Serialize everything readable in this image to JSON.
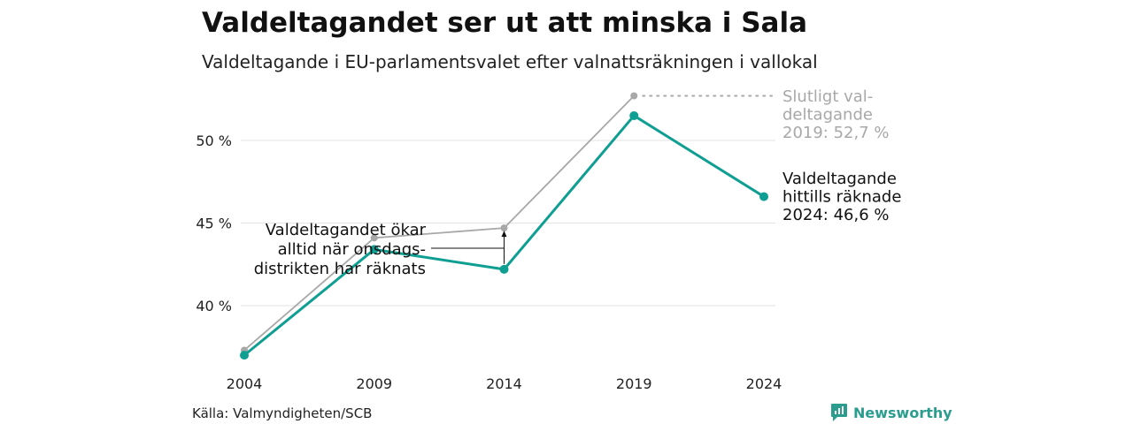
{
  "header": {
    "title": "Valdeltagandet ser ut att minska i Sala",
    "subtitle": "Valdeltagande i EU-parlamentsvalet efter valnattsräkningen i vallokal"
  },
  "footer": {
    "source": "Källa: Valmyndigheten/SCB",
    "brand": "Newsworthy",
    "brand_icon": "newsworthy-logo-icon",
    "brand_color": "#2a9d8f"
  },
  "chart_data": {
    "type": "line",
    "x": [
      "2004",
      "2009",
      "2014",
      "2019",
      "2024"
    ],
    "ylim": [
      36,
      53.5
    ],
    "yticks": [
      {
        "value": 40,
        "label": "40 %"
      },
      {
        "value": 45,
        "label": "45 %"
      },
      {
        "value": 50,
        "label": "50 %"
      }
    ],
    "grid": true,
    "series": [
      {
        "key": "final",
        "color": "#a8a8a8",
        "values": [
          37.3,
          44.1,
          44.7,
          52.7,
          null
        ]
      },
      {
        "key": "counted",
        "color": "#0f9e92",
        "values": [
          37.0,
          43.4,
          42.2,
          51.5,
          46.6
        ]
      }
    ],
    "annotations": {
      "final_label": [
        "Slutligt val-",
        "deltagande",
        "2019: 52,7 %"
      ],
      "counted_label": [
        "Valdeltagande",
        "hittills räknade",
        "2024: 46,6 %"
      ],
      "note_label": [
        "Valdeltagandet ökar",
        "alltid när onsdags-",
        "distrikten har räknats"
      ]
    }
  }
}
